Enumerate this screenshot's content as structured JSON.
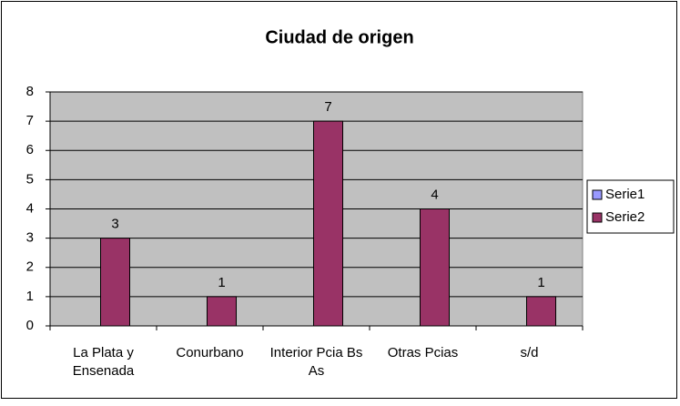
{
  "chart_data": {
    "type": "bar",
    "title": "Ciudad de origen",
    "categories": [
      "La Plata y Ensenada",
      "Conurbano",
      "Interior Pcia Bs As",
      "Otras Pcias",
      "s/d"
    ],
    "series": [
      {
        "name": "Serie1",
        "color": "#9999ff",
        "values": [
          null,
          null,
          null,
          null,
          null
        ]
      },
      {
        "name": "Serie2",
        "color": "#993366",
        "values": [
          3,
          1,
          7,
          4,
          1
        ]
      }
    ],
    "ylim": [
      0,
      8
    ],
    "yticks": [
      0,
      1,
      2,
      3,
      4,
      5,
      6,
      7,
      8
    ],
    "grid": true,
    "legend": "right"
  }
}
